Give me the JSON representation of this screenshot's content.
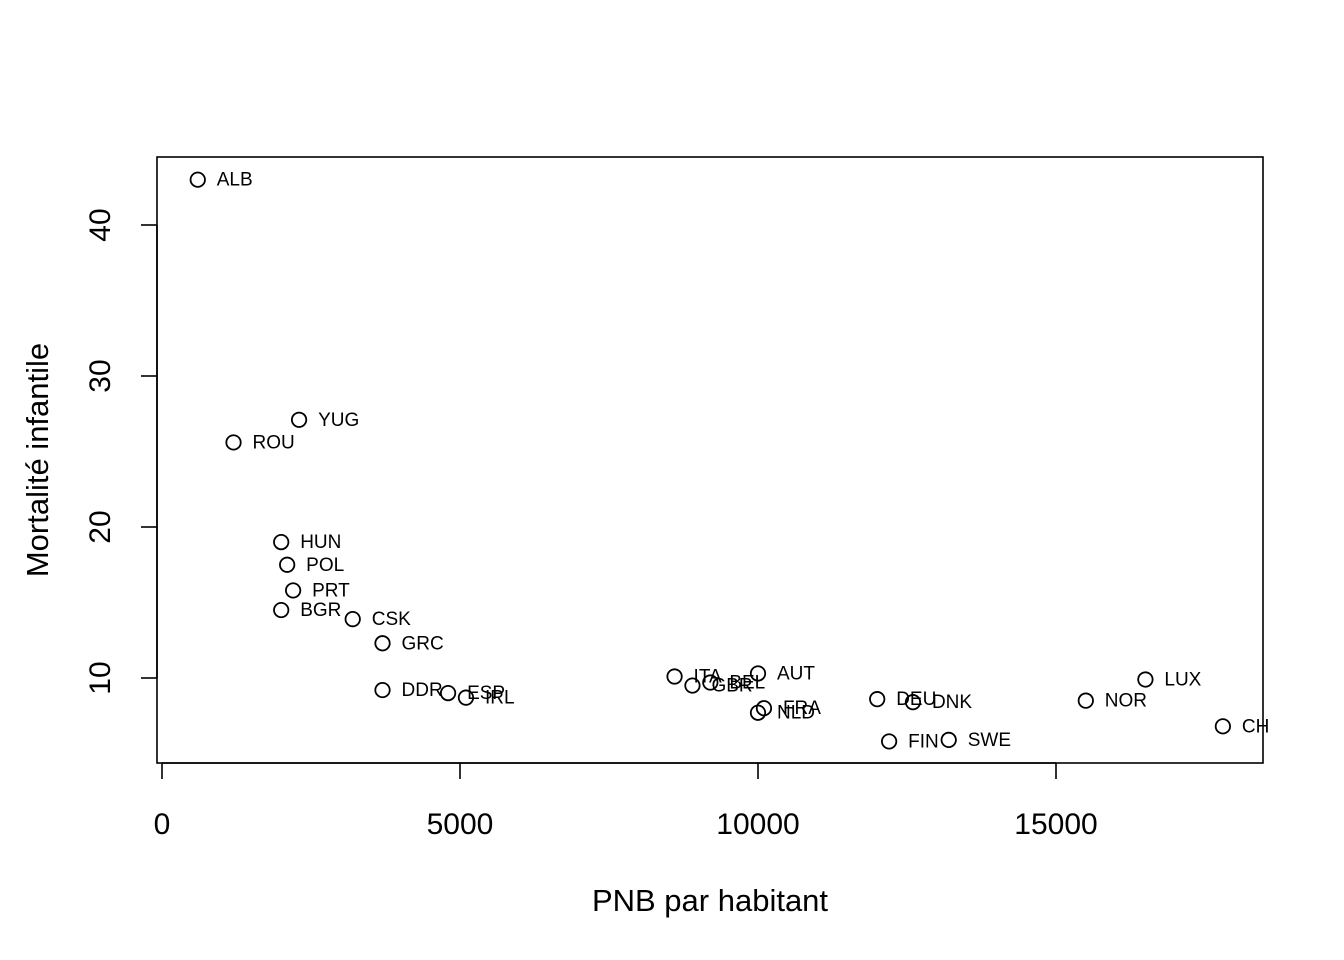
{
  "chart_data": {
    "type": "scatter",
    "title": "",
    "xlabel": "PNB par habitant",
    "ylabel": "Mortalité infantile",
    "xlim": [
      0,
      18500
    ],
    "ylim": [
      4.4,
      44.5
    ],
    "xticks": [
      0,
      5000,
      10000,
      15000
    ],
    "yticks": [
      10,
      20,
      30,
      40
    ],
    "grid": false,
    "points": [
      {
        "label": "ALB",
        "x": 600,
        "y": 43.0
      },
      {
        "label": "YUG",
        "x": 2300,
        "y": 27.1
      },
      {
        "label": "ROU",
        "x": 1200,
        "y": 25.6
      },
      {
        "label": "HUN",
        "x": 2000,
        "y": 19.0
      },
      {
        "label": "POL",
        "x": 2100,
        "y": 17.5
      },
      {
        "label": "PRT",
        "x": 2200,
        "y": 15.8
      },
      {
        "label": "BGR",
        "x": 2000,
        "y": 14.5
      },
      {
        "label": "CSK",
        "x": 3200,
        "y": 13.9
      },
      {
        "label": "GRC",
        "x": 3700,
        "y": 12.3
      },
      {
        "label": "DDR",
        "x": 3700,
        "y": 9.2
      },
      {
        "label": "ESP",
        "x": 4800,
        "y": 9.0
      },
      {
        "label": "IRL",
        "x": 5100,
        "y": 8.7
      },
      {
        "label": "ITA",
        "x": 8600,
        "y": 10.1
      },
      {
        "label": "GBR",
        "x": 8900,
        "y": 9.5
      },
      {
        "label": "BEL",
        "x": 9200,
        "y": 9.7
      },
      {
        "label": "AUT",
        "x": 10000,
        "y": 10.3
      },
      {
        "label": "FRA",
        "x": 10100,
        "y": 8.0
      },
      {
        "label": "NLD",
        "x": 10000,
        "y": 7.7
      },
      {
        "label": "DEU",
        "x": 12000,
        "y": 8.6
      },
      {
        "label": "DNK",
        "x": 12600,
        "y": 8.4
      },
      {
        "label": "FIN",
        "x": 12200,
        "y": 5.8
      },
      {
        "label": "SWE",
        "x": 13200,
        "y": 5.9
      },
      {
        "label": "NOR",
        "x": 15500,
        "y": 8.5
      },
      {
        "label": "LUX",
        "x": 16500,
        "y": 9.9
      },
      {
        "label": "CHE",
        "x": 17800,
        "y": 6.8
      }
    ]
  }
}
